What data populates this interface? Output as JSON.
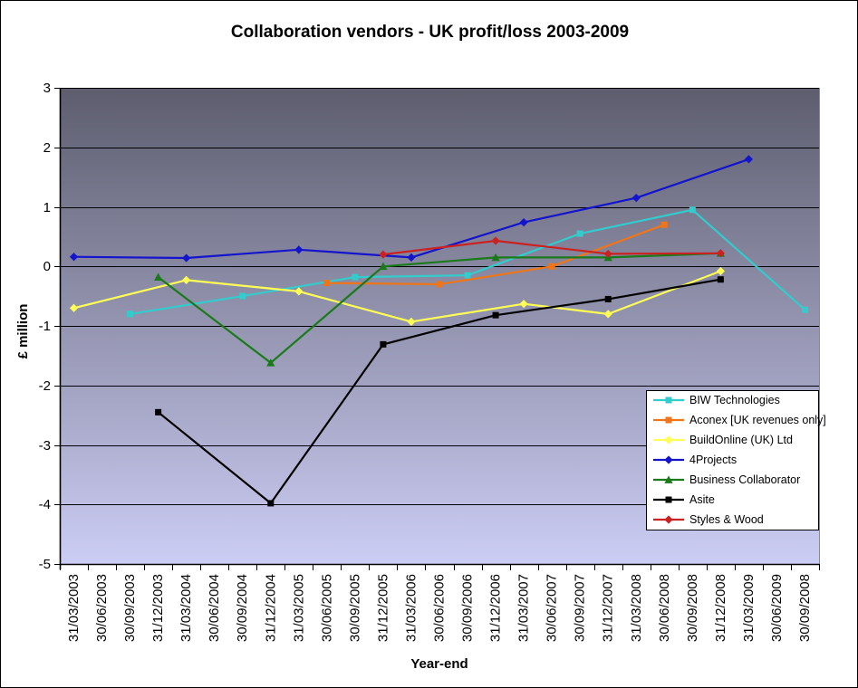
{
  "chart": {
    "title": "Collaboration vendors - UK profit/loss 2003-2009",
    "x_axis_title": "Year-end",
    "y_axis_title": "£ million"
  },
  "chart_data": {
    "type": "line",
    "title": "Collaboration vendors - UK profit/loss 2003-2009",
    "xlabel": "Year-end",
    "ylabel": "£ million",
    "ylim": [
      -5,
      3
    ],
    "y_ticks": [
      3,
      2,
      1,
      0,
      -1,
      -2,
      -3,
      -4,
      -5
    ],
    "grid": true,
    "legend_position": "inside-right",
    "plot_bg_gradient_top": "#5d5d6e",
    "plot_bg_gradient_bottom": "#cccdf4",
    "categories": [
      "31/03/2003",
      "30/06/2003",
      "30/09/2003",
      "31/12/2003",
      "31/03/2004",
      "30/06/2004",
      "30/09/2004",
      "31/12/2004",
      "31/03/2005",
      "30/06/2005",
      "30/09/2005",
      "31/12/2005",
      "31/03/2006",
      "30/06/2006",
      "30/09/2006",
      "31/12/2006",
      "31/03/2007",
      "30/06/2007",
      "30/09/2007",
      "31/12/2007",
      "31/03/2008",
      "30/06/2008",
      "30/09/2008",
      "31/12/2008",
      "31/03/2009",
      "30/06/2009",
      "30/09/2008"
    ],
    "series": [
      {
        "name": "BIW Technologies",
        "color": "#33cccc",
        "marker": "square",
        "points": [
          [
            2,
            -0.8
          ],
          [
            6,
            -0.5
          ],
          [
            10,
            -0.18
          ],
          [
            14,
            -0.15
          ],
          [
            18,
            0.55
          ],
          [
            22,
            0.95
          ],
          [
            26,
            -0.73
          ]
        ]
      },
      {
        "name": "Aconex [UK revenues only]",
        "color": "#ee7519",
        "marker": "square",
        "points": [
          [
            9,
            -0.28
          ],
          [
            13,
            -0.3
          ],
          [
            17,
            0.0
          ],
          [
            21,
            0.7
          ]
        ]
      },
      {
        "name": "BuildOnline (UK) Ltd",
        "color": "#ffff55",
        "marker": "diamond",
        "points": [
          [
            0,
            -0.7
          ],
          [
            4,
            -0.23
          ],
          [
            8,
            -0.42
          ],
          [
            12,
            -0.93
          ],
          [
            16,
            -0.63
          ],
          [
            19,
            -0.8
          ],
          [
            23,
            -0.08
          ]
        ]
      },
      {
        "name": "4Projects",
        "color": "#1414cc",
        "marker": "diamond",
        "points": [
          [
            0,
            0.16
          ],
          [
            4,
            0.14
          ],
          [
            8,
            0.28
          ],
          [
            12,
            0.15
          ],
          [
            16,
            0.74
          ],
          [
            20,
            1.15
          ],
          [
            24,
            1.8
          ]
        ]
      },
      {
        "name": "Business Collaborator",
        "color": "#1a7a1a",
        "marker": "triangle",
        "points": [
          [
            3,
            -0.18
          ],
          [
            7,
            -1.62
          ],
          [
            11,
            0.0
          ],
          [
            15,
            0.15
          ],
          [
            19,
            0.15
          ],
          [
            23,
            0.22
          ]
        ]
      },
      {
        "name": "Asite",
        "color": "#000000",
        "marker": "square",
        "points": [
          [
            3,
            -2.45
          ],
          [
            7,
            -3.98
          ],
          [
            11,
            -1.31
          ],
          [
            15,
            -0.82
          ],
          [
            19,
            -0.55
          ],
          [
            23,
            -0.22
          ]
        ]
      },
      {
        "name": "Styles & Wood",
        "color": "#cc2121",
        "marker": "diamond",
        "points": [
          [
            11,
            0.2
          ],
          [
            15,
            0.43
          ],
          [
            19,
            0.21
          ],
          [
            23,
            0.22
          ]
        ]
      }
    ]
  }
}
